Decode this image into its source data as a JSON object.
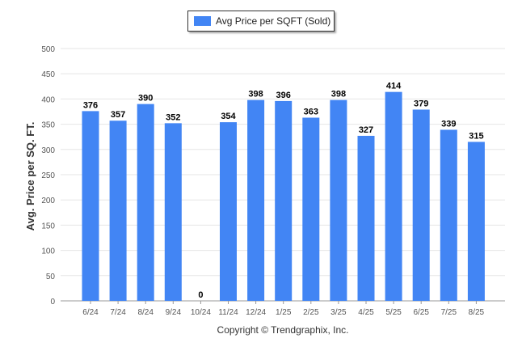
{
  "legend": {
    "label": "Avg Price per SQFT (Sold)"
  },
  "copyright": "Copyright © Trendgraphix, Inc.",
  "colors": {
    "bar": "#4285f4",
    "grid": "#e6e6e6",
    "axis": "#999999"
  },
  "chart_data": {
    "type": "bar",
    "categories": [
      "6/24",
      "7/24",
      "8/24",
      "9/24",
      "10/24",
      "11/24",
      "12/24",
      "1/25",
      "2/25",
      "3/25",
      "4/25",
      "5/25",
      "6/25",
      "7/25",
      "8/25"
    ],
    "series": [
      {
        "name": "Avg Price per SQFT (Sold)",
        "values": [
          376,
          357,
          390,
          352,
          0,
          354,
          398,
          396,
          363,
          398,
          327,
          414,
          379,
          339,
          315
        ]
      }
    ],
    "ylabel": "Avg. Price per SQ. FT.",
    "xlabel": "",
    "ylim": [
      0,
      500
    ],
    "yticks": [
      0,
      50,
      100,
      150,
      200,
      250,
      300,
      350,
      400,
      450,
      500
    ],
    "grid": true,
    "legend_position": "top-center",
    "data_labels": true
  }
}
